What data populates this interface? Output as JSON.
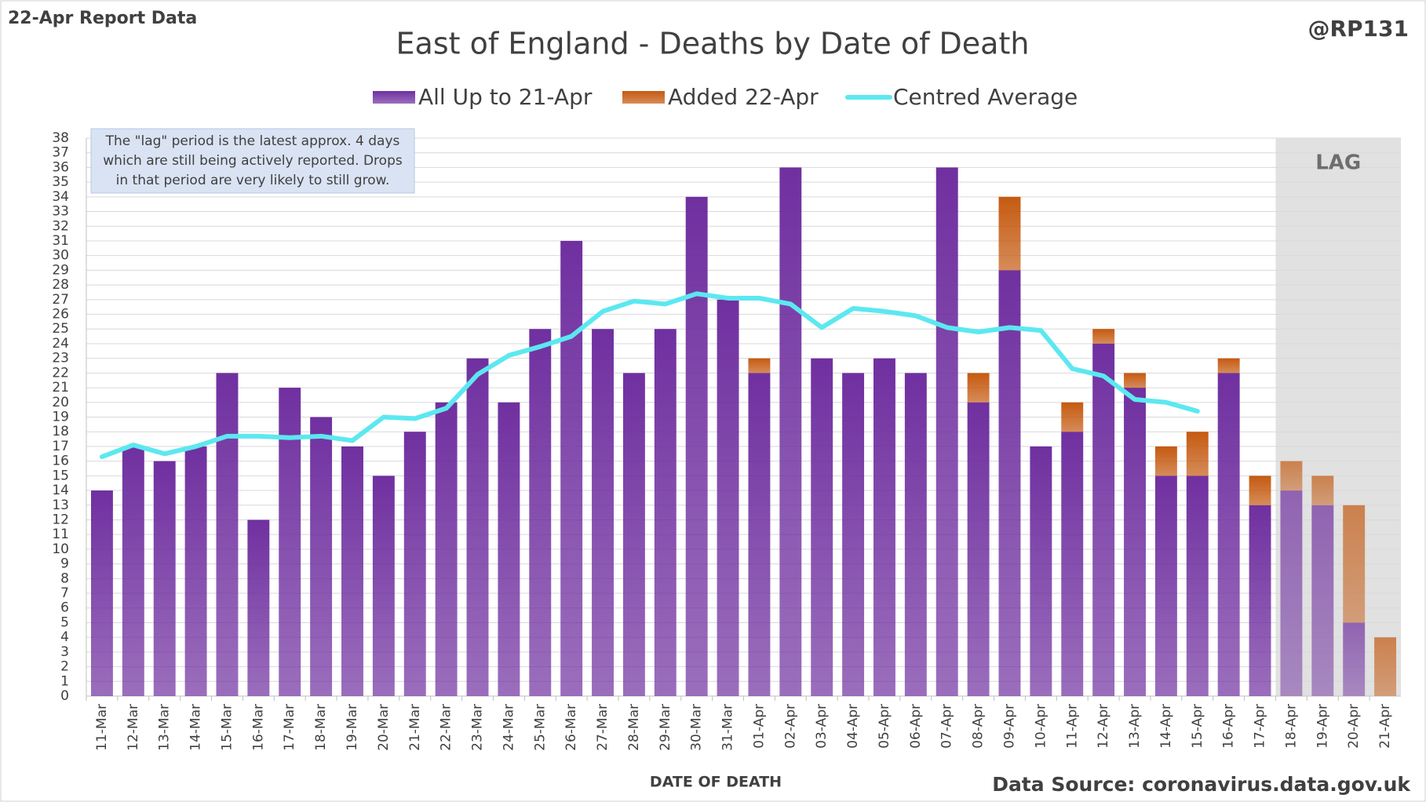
{
  "chart_data": {
    "type": "bar",
    "title": "East of England - Deaths by Date of Death",
    "report_label": "22-Apr Report Data",
    "author": "@RP131",
    "x_label": "DATE OF DEATH",
    "source": "Data Source: coronavirus.data.gov.uk",
    "lag_label": "LAG",
    "annotation": [
      "The \"lag\" period is the latest approx. 4 days",
      "which are still being actively reported.  Drops",
      "in that period are very likely to still grow."
    ],
    "stacked": true,
    "categories": [
      "11-Mar",
      "12-Mar",
      "13-Mar",
      "14-Mar",
      "15-Mar",
      "16-Mar",
      "17-Mar",
      "18-Mar",
      "19-Mar",
      "20-Mar",
      "21-Mar",
      "22-Mar",
      "23-Mar",
      "24-Mar",
      "25-Mar",
      "26-Mar",
      "27-Mar",
      "28-Mar",
      "29-Mar",
      "30-Mar",
      "31-Mar",
      "01-Apr",
      "02-Apr",
      "03-Apr",
      "04-Apr",
      "05-Apr",
      "06-Apr",
      "07-Apr",
      "08-Apr",
      "09-Apr",
      "10-Apr",
      "11-Apr",
      "12-Apr",
      "13-Apr",
      "14-Apr",
      "15-Apr",
      "16-Apr",
      "17-Apr",
      "18-Apr",
      "19-Apr",
      "20-Apr",
      "21-Apr"
    ],
    "series": [
      {
        "name": "All Up to 21-Apr",
        "type": "bar",
        "color": "#7030a0",
        "values": [
          14,
          17,
          16,
          17,
          22,
          12,
          21,
          19,
          17,
          15,
          18,
          20,
          23,
          20,
          25,
          31,
          25,
          22,
          25,
          34,
          27,
          22,
          36,
          23,
          22,
          23,
          22,
          36,
          20,
          29,
          17,
          18,
          24,
          21,
          15,
          15,
          22,
          13,
          14,
          13,
          5,
          0
        ]
      },
      {
        "name": "Added 22-Apr",
        "type": "bar",
        "color": "#c55a11",
        "values": [
          0,
          0,
          0,
          0,
          0,
          0,
          0,
          0,
          0,
          0,
          0,
          0,
          0,
          0,
          0,
          0,
          0,
          0,
          0,
          0,
          0,
          1,
          0,
          0,
          0,
          0,
          0,
          0,
          2,
          5,
          0,
          2,
          1,
          1,
          2,
          3,
          1,
          2,
          2,
          2,
          8,
          4
        ]
      },
      {
        "name": "Centred Average",
        "type": "line",
        "color": "#5ce8f0",
        "values": [
          16.3,
          17.1,
          16.5,
          17.0,
          17.7,
          17.7,
          17.6,
          17.7,
          17.4,
          19.0,
          18.9,
          19.6,
          21.9,
          23.2,
          23.8,
          24.5,
          26.2,
          26.9,
          26.7,
          27.4,
          27.1,
          27.1,
          26.7,
          25.1,
          26.4,
          26.2,
          25.9,
          25.1,
          24.8,
          25.1,
          24.9,
          22.3,
          21.8,
          20.2,
          20.0,
          19.4,
          null,
          null,
          null,
          null,
          null,
          null
        ]
      }
    ],
    "ylim": [
      0,
      38
    ],
    "yticks": [
      0,
      1,
      2,
      3,
      4,
      5,
      6,
      7,
      8,
      9,
      10,
      11,
      12,
      13,
      14,
      15,
      16,
      17,
      18,
      19,
      20,
      21,
      22,
      23,
      24,
      25,
      26,
      27,
      28,
      29,
      30,
      31,
      32,
      33,
      34,
      35,
      36,
      37,
      38
    ],
    "grid": true
  }
}
